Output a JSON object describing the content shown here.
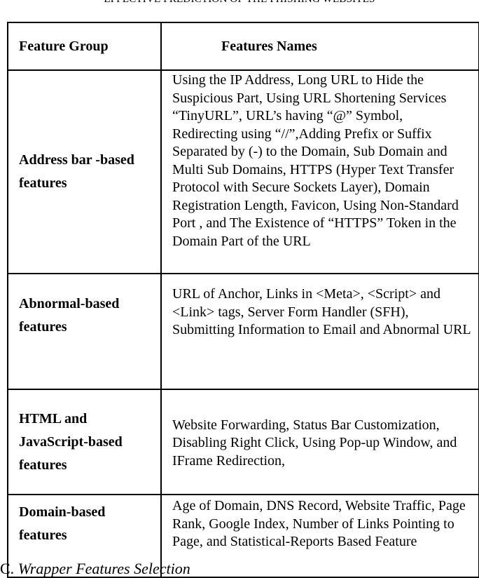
{
  "caption": "EFFECTIVE PREDICTION OF THE PHISHING WEBSITES",
  "table": {
    "headers": [
      "Feature Group",
      "Features Names"
    ],
    "rows": [
      {
        "group": "Address bar -based features",
        "names": "Using the IP Address, Long URL to Hide the Suspicious Part, Using URL Shortening Services “TinyURL”, URL’s having “@” Symbol, Redirecting using “//”,Adding Prefix or Suffix Separated by (-) to the Domain, Sub Domain and Multi Sub Domains, HTTPS (Hyper Text Transfer Protocol with Secure Sockets Layer), Domain Registration Length, Favicon, Using Non-Standard Port , and The Existence of “HTTPS” Token in the Domain Part of the URL"
      },
      {
        "group": "Abnormal-based features",
        "names": "URL of Anchor, Links in <Meta>, <Script> and <Link> tags, Server Form Handler (SFH), Submitting Information to Email and Abnormal URL"
      },
      {
        "group": "HTML and JavaScript-based features",
        "names": "Website Forwarding, Status Bar Customization, Disabling Right Click, Using Pop-up Window, and IFrame Redirection,"
      },
      {
        "group": "Domain-based features",
        "names": "Age of Domain, DNS Record, Website Traffic, Page Rank, Google Index, Number of Links Pointing to Page, and Statistical-Reports Based Feature"
      }
    ]
  },
  "next_section": {
    "number": "C.",
    "title": "Wrapper Features Selection"
  }
}
